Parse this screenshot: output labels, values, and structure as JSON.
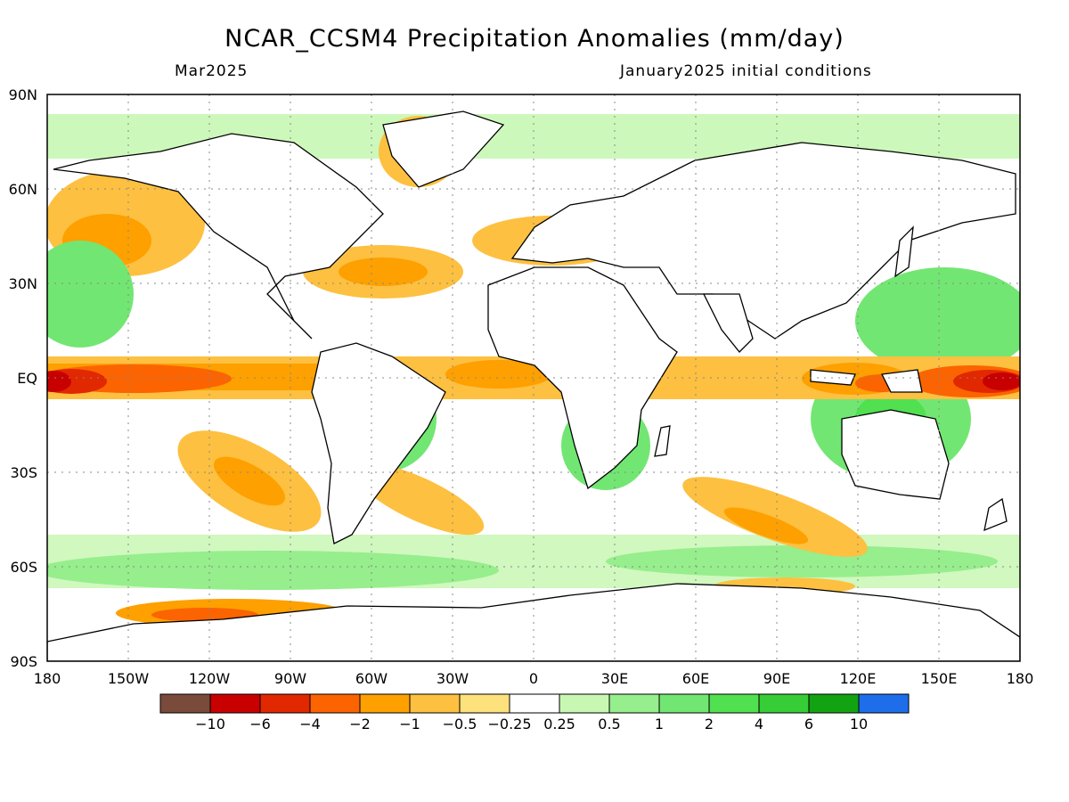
{
  "title": "NCAR_CCSM4 Precipitation Anomalies (mm/day)",
  "subtitle_left": "Mar2025",
  "subtitle_right": "January2025 initial conditions",
  "lat_labels": [
    "90N",
    "60N",
    "30N",
    "EQ",
    "30S",
    "60S",
    "90S"
  ],
  "lon_labels": [
    "180",
    "150W",
    "120W",
    "90W",
    "60W",
    "30W",
    "0",
    "30E",
    "60E",
    "90E",
    "120E",
    "150E",
    "180"
  ],
  "colorbar": {
    "colors": [
      "#7a4b3a",
      "#c80000",
      "#e12800",
      "#fb6400",
      "#fda000",
      "#fdc040",
      "#fde17c",
      "#ffffff",
      "#c8f7b4",
      "#96ee8c",
      "#72e672",
      "#50e050",
      "#36cd36",
      "#12a312",
      "#1e6eeb"
    ],
    "labels": [
      "−10",
      "−6",
      "−4",
      "−2",
      "−1",
      "−0.5",
      "−0.25",
      "0.25",
      "0.5",
      "1",
      "2",
      "4",
      "6",
      "10"
    ]
  }
}
